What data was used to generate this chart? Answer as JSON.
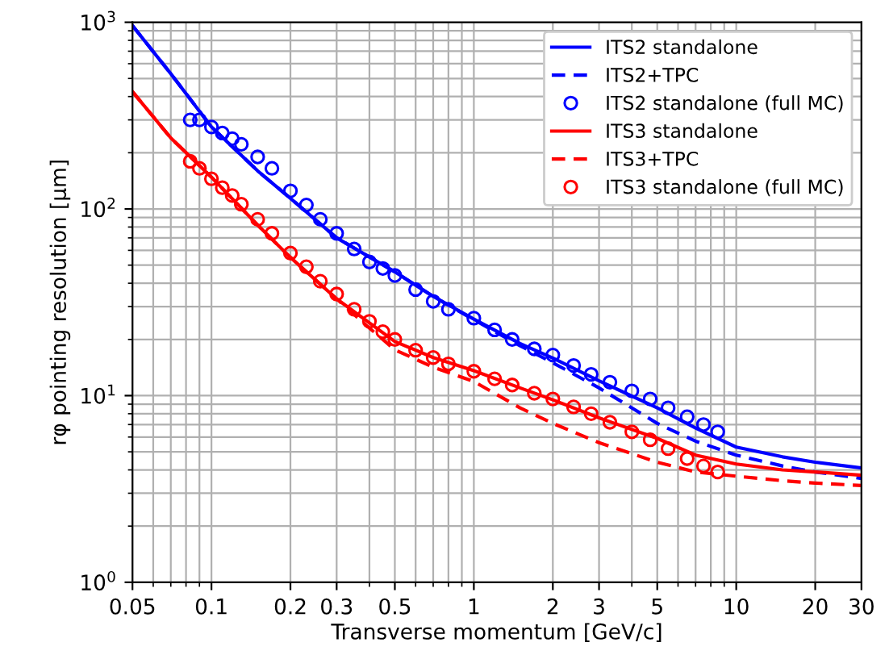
{
  "chart_data": {
    "type": "line",
    "xlabel": "Transverse momentum [GeV/c]",
    "ylabel": "rφ pointing resolution [μm]",
    "log": "xy",
    "grid": true,
    "legend": "top right",
    "xlim": [
      0.05,
      30
    ],
    "ylim": [
      1,
      1000
    ],
    "xticks": [
      0.05,
      0.1,
      0.2,
      0.3,
      0.5,
      1,
      2,
      3,
      5,
      10,
      20,
      30
    ],
    "yticks": [
      {
        "value": 1,
        "label": "10$^{0}$"
      },
      {
        "value": 10,
        "label": "10$^{1}$"
      },
      {
        "value": 100,
        "label": "10$^{2}$"
      },
      {
        "value": 1000,
        "label": "10$^{3}$"
      }
    ],
    "series": [
      {
        "name": "ITS2 standalone",
        "color": "#0000ff",
        "line_style": "solid",
        "x": [
          0.05,
          0.07,
          0.1,
          0.15,
          0.2,
          0.3,
          0.5,
          0.7,
          1,
          1.5,
          2,
          3,
          5,
          7,
          10,
          15,
          20,
          30
        ],
        "values": [
          960,
          530,
          275,
          160,
          114,
          70,
          46,
          34,
          25.7,
          19,
          15.9,
          12,
          8.6,
          6.7,
          5.3,
          4.7,
          4.4,
          4.1
        ]
      },
      {
        "name": "ITS2+TPC",
        "color": "#0000ff",
        "line_style": "dashed",
        "x": [
          0.05,
          0.07,
          0.1,
          0.15,
          0.2,
          0.3,
          0.5,
          0.7,
          1,
          1.5,
          2,
          3,
          5,
          7,
          10,
          15,
          20,
          30
        ],
        "values": [
          960,
          530,
          275,
          160,
          114,
          70,
          46,
          34,
          25.5,
          18.5,
          15,
          11,
          7.1,
          5.7,
          4.8,
          4.2,
          3.9,
          3.6
        ]
      },
      {
        "name": "ITS2 standalone (full MC)",
        "type": "scatter",
        "marker": "circle",
        "color": "#0000ff",
        "x": [
          0.083,
          0.09,
          0.1,
          0.11,
          0.12,
          0.13,
          0.15,
          0.17,
          0.2,
          0.23,
          0.26,
          0.3,
          0.35,
          0.4,
          0.45,
          0.5,
          0.6,
          0.7,
          0.8,
          1,
          1.2,
          1.4,
          1.7,
          2,
          2.4,
          2.8,
          3.3,
          4,
          4.7,
          5.5,
          6.5,
          7.5,
          8.5
        ],
        "values": [
          300,
          300,
          275,
          255,
          238,
          222,
          190,
          165,
          125,
          105,
          88,
          74,
          61,
          52,
          48,
          44,
          37,
          32,
          29,
          26,
          22.5,
          20,
          17.8,
          16.5,
          14.5,
          13,
          11.8,
          10.6,
          9.6,
          8.6,
          7.7,
          7,
          6.4
        ]
      },
      {
        "name": "ITS3 standalone",
        "color": "#ff0000",
        "line_style": "solid",
        "x": [
          0.05,
          0.07,
          0.1,
          0.15,
          0.2,
          0.3,
          0.5,
          0.7,
          1,
          1.5,
          2,
          3,
          5,
          7,
          10,
          15,
          20,
          30
        ],
        "values": [
          425,
          240,
          148,
          82,
          55,
          33,
          19.5,
          16,
          13.6,
          11,
          9.5,
          7.6,
          5.9,
          4.8,
          4.3,
          4.0,
          3.9,
          3.75
        ]
      },
      {
        "name": "ITS3+TPC",
        "color": "#ff0000",
        "line_style": "dashed",
        "x": [
          0.05,
          0.07,
          0.1,
          0.15,
          0.2,
          0.3,
          0.4,
          0.5,
          0.7,
          1,
          1.5,
          2,
          3,
          5,
          7,
          10,
          15,
          20,
          30
        ],
        "values": [
          425,
          240,
          148,
          82,
          55,
          33,
          23,
          17.6,
          14.2,
          11.9,
          8.6,
          7.1,
          5.6,
          4.4,
          3.9,
          3.7,
          3.5,
          3.4,
          3.3
        ]
      },
      {
        "name": "ITS3 standalone (full MC)",
        "type": "scatter",
        "marker": "circle",
        "color": "#ff0000",
        "x": [
          0.083,
          0.09,
          0.1,
          0.11,
          0.12,
          0.13,
          0.15,
          0.17,
          0.2,
          0.23,
          0.26,
          0.3,
          0.35,
          0.4,
          0.45,
          0.5,
          0.6,
          0.7,
          0.8,
          1,
          1.2,
          1.4,
          1.7,
          2,
          2.4,
          2.8,
          3.3,
          4,
          4.7,
          5.5,
          6.5,
          7.5,
          8.5
        ],
        "values": [
          180,
          165,
          145,
          130,
          118,
          106,
          88,
          74,
          58,
          49,
          41,
          35,
          29,
          25,
          22,
          20,
          17.5,
          16,
          14.8,
          13.5,
          12.3,
          11.4,
          10.3,
          9.6,
          8.7,
          8,
          7.2,
          6.4,
          5.8,
          5.2,
          4.6,
          4.2,
          3.9
        ]
      }
    ]
  }
}
